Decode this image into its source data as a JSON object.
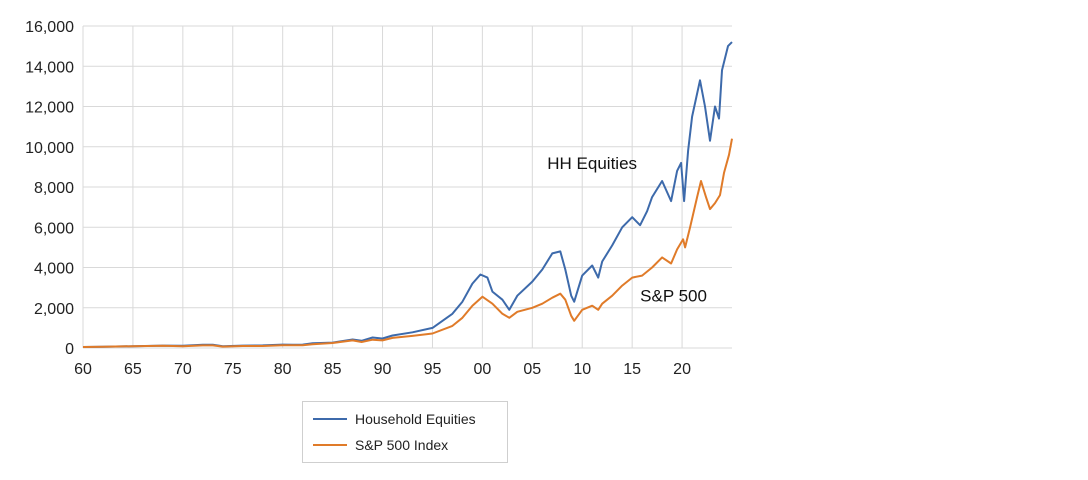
{
  "chart_data": {
    "type": "line",
    "title": "",
    "xlabel": "",
    "ylabel": "",
    "x_tick_labels": [
      "60",
      "65",
      "70",
      "75",
      "80",
      "85",
      "90",
      "95",
      "00",
      "05",
      "10",
      "15",
      "20"
    ],
    "y_tick_labels": [
      "0",
      "2,000",
      "4,000",
      "6,000",
      "8,000",
      "10,000",
      "12,000",
      "14,000",
      "16,000"
    ],
    "xlim": [
      1960,
      2025
    ],
    "ylim": [
      0,
      16000
    ],
    "grid": "vertical-and-horizontal",
    "legend_position": "bottom",
    "annotations": [
      {
        "text": "HH Equities",
        "x": 2006.5,
        "y": 9200
      },
      {
        "text": "S&P 500",
        "x": 2015.8,
        "y": 2600
      }
    ],
    "series": [
      {
        "name": "Household Equities",
        "color": "#3d6aab",
        "points": [
          [
            1960,
            50
          ],
          [
            1962,
            60
          ],
          [
            1965,
            90
          ],
          [
            1968,
            120
          ],
          [
            1970,
            110
          ],
          [
            1972,
            160
          ],
          [
            1973,
            160
          ],
          [
            1974,
            90
          ],
          [
            1976,
            120
          ],
          [
            1978,
            130
          ],
          [
            1980,
            170
          ],
          [
            1981,
            160
          ],
          [
            1982,
            170
          ],
          [
            1983,
            240
          ],
          [
            1985,
            270
          ],
          [
            1987,
            420
          ],
          [
            1987.9,
            360
          ],
          [
            1989,
            520
          ],
          [
            1990,
            470
          ],
          [
            1991,
            620
          ],
          [
            1993,
            780
          ],
          [
            1995,
            1000
          ],
          [
            1997,
            1700
          ],
          [
            1998,
            2300
          ],
          [
            1999,
            3200
          ],
          [
            1999.8,
            3650
          ],
          [
            2000.5,
            3500
          ],
          [
            2001,
            2800
          ],
          [
            2002,
            2400
          ],
          [
            2002.7,
            1900
          ],
          [
            2003.5,
            2600
          ],
          [
            2005,
            3300
          ],
          [
            2006,
            3900
          ],
          [
            2007,
            4700
          ],
          [
            2007.8,
            4800
          ],
          [
            2008.3,
            3900
          ],
          [
            2008.9,
            2600
          ],
          [
            2009.2,
            2300
          ],
          [
            2010,
            3600
          ],
          [
            2011,
            4100
          ],
          [
            2011.6,
            3500
          ],
          [
            2012,
            4300
          ],
          [
            2013,
            5100
          ],
          [
            2014,
            6000
          ],
          [
            2015,
            6500
          ],
          [
            2015.8,
            6100
          ],
          [
            2016.5,
            6800
          ],
          [
            2017,
            7500
          ],
          [
            2018,
            8300
          ],
          [
            2018.9,
            7300
          ],
          [
            2019.5,
            8800
          ],
          [
            2019.9,
            9200
          ],
          [
            2020.2,
            7300
          ],
          [
            2020.6,
            9800
          ],
          [
            2021,
            11500
          ],
          [
            2021.8,
            13300
          ],
          [
            2022.3,
            12000
          ],
          [
            2022.8,
            10300
          ],
          [
            2023.3,
            12000
          ],
          [
            2023.7,
            11400
          ],
          [
            2024,
            13800
          ],
          [
            2024.6,
            15000
          ],
          [
            2025,
            15200
          ]
        ]
      },
      {
        "name": "S&P 500 Index",
        "color": "#e07b29",
        "points": [
          [
            1960,
            50
          ],
          [
            1962,
            60
          ],
          [
            1965,
            90
          ],
          [
            1968,
            110
          ],
          [
            1970,
            90
          ],
          [
            1972,
            130
          ],
          [
            1973,
            130
          ],
          [
            1974,
            70
          ],
          [
            1976,
            100
          ],
          [
            1978,
            100
          ],
          [
            1980,
            140
          ],
          [
            1982,
            140
          ],
          [
            1983,
            190
          ],
          [
            1985,
            250
          ],
          [
            1987,
            380
          ],
          [
            1987.9,
            300
          ],
          [
            1989,
            410
          ],
          [
            1990,
            380
          ],
          [
            1991,
            500
          ],
          [
            1993,
            600
          ],
          [
            1995,
            720
          ],
          [
            1997,
            1100
          ],
          [
            1998,
            1500
          ],
          [
            1999,
            2100
          ],
          [
            2000,
            2550
          ],
          [
            2001,
            2200
          ],
          [
            2002,
            1700
          ],
          [
            2002.7,
            1500
          ],
          [
            2003.5,
            1800
          ],
          [
            2005,
            2000
          ],
          [
            2006,
            2200
          ],
          [
            2007,
            2500
          ],
          [
            2007.8,
            2700
          ],
          [
            2008.3,
            2400
          ],
          [
            2008.9,
            1600
          ],
          [
            2009.2,
            1350
          ],
          [
            2010,
            1900
          ],
          [
            2011,
            2100
          ],
          [
            2011.6,
            1900
          ],
          [
            2012,
            2200
          ],
          [
            2013,
            2600
          ],
          [
            2014,
            3100
          ],
          [
            2015,
            3500
          ],
          [
            2016,
            3600
          ],
          [
            2017,
            4000
          ],
          [
            2018,
            4500
          ],
          [
            2018.9,
            4200
          ],
          [
            2019.5,
            4900
          ],
          [
            2020.1,
            5400
          ],
          [
            2020.3,
            5000
          ],
          [
            2020.8,
            6000
          ],
          [
            2021.5,
            7500
          ],
          [
            2021.9,
            8300
          ],
          [
            2022.4,
            7500
          ],
          [
            2022.8,
            6900
          ],
          [
            2023.3,
            7200
          ],
          [
            2023.8,
            7600
          ],
          [
            2024.2,
            8700
          ],
          [
            2024.7,
            9600
          ],
          [
            2025,
            10400
          ]
        ]
      }
    ]
  }
}
